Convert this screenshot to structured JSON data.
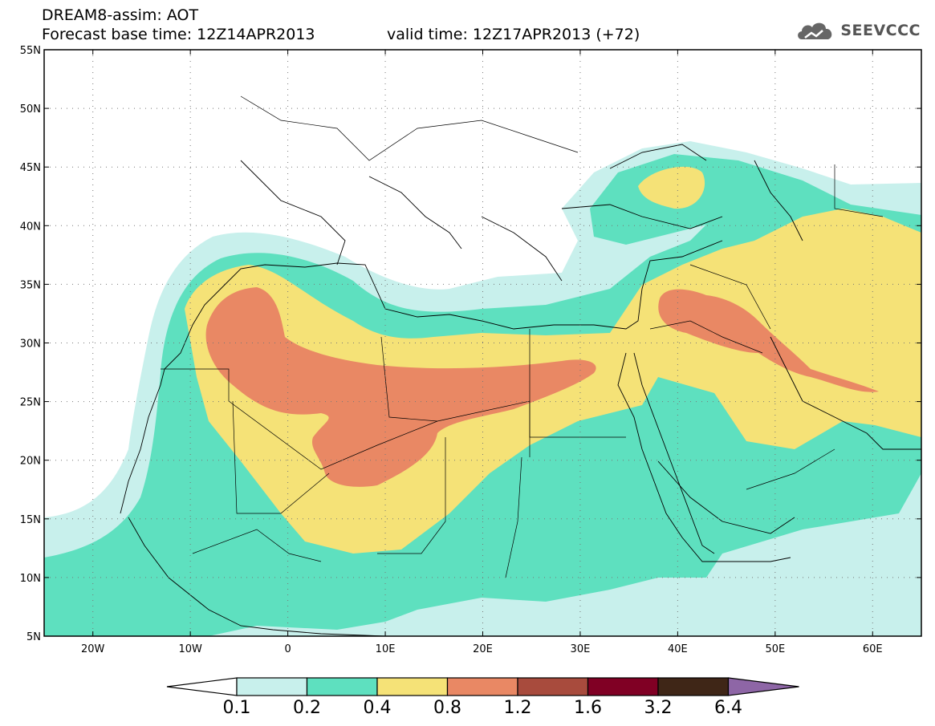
{
  "header": {
    "line1": "DREAM8-assim: AOT",
    "line2": "Forecast base time: 12Z14APR2013",
    "line3": "valid time: 12Z17APR2013 (+72)"
  },
  "logo": {
    "text": "SEEVCCC",
    "icon": "cloud-icon",
    "color": "#5a5a5a"
  },
  "map": {
    "lon_range": [
      -25,
      65
    ],
    "lat_range": [
      5,
      55
    ],
    "lat_ticks": [
      "5N",
      "10N",
      "15N",
      "20N",
      "25N",
      "30N",
      "35N",
      "40N",
      "45N",
      "50N",
      "55N"
    ],
    "lon_ticks": [
      "20W",
      "10W",
      "0",
      "10E",
      "20E",
      "30E",
      "40E",
      "50E",
      "60E"
    ]
  },
  "colorbar": {
    "labels": [
      "0.1",
      "0.2",
      "0.4",
      "0.8",
      "1.2",
      "1.6",
      "3.2",
      "6.4"
    ],
    "colors": [
      "#c8f0ec",
      "#5ee0bf",
      "#f5e277",
      "#e98864",
      "#a84b3d",
      "#800024",
      "#3f2617",
      "#8e66a6"
    ]
  }
}
